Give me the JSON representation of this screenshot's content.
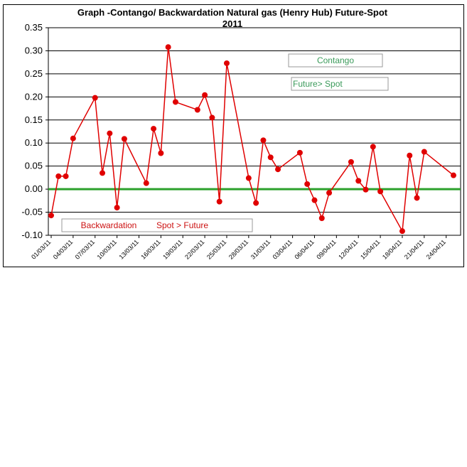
{
  "chart_data": {
    "type": "line",
    "title": "Graph -Contango/ Backwardation Natural gas (Henry Hub) Future-Spot",
    "subtitle": "2011",
    "xlabel": "",
    "ylabel": "",
    "ylim": [
      -0.1,
      0.35
    ],
    "y_ticks": [
      "0.35",
      "0.30",
      "0.25",
      "0.20",
      "0.15",
      "0.10",
      "0.05",
      "0.00",
      "-0.05",
      "-0.10"
    ],
    "x_tick_labels": [
      "01/03/11",
      "04/03/11",
      "07/03/11",
      "10/03/11",
      "13/03/11",
      "16/03/11",
      "19/03/11",
      "22/03/11",
      "25/03/11",
      "28/03/11",
      "31/03/11",
      "03/04/11",
      "06/04/11",
      "09/04/11",
      "12/04/11",
      "15/04/11",
      "18/04/11",
      "21/04/11",
      "24/04/11"
    ],
    "grid": true,
    "zero_line_color": "#2ca02c",
    "series_color": "#e00000",
    "series": [
      {
        "x": [
          "01/03/11",
          "02/03/11",
          "03/03/11",
          "04/03/11",
          "07/03/11",
          "08/03/11",
          "09/03/11",
          "10/03/11",
          "11/03/11",
          "14/03/11",
          "15/03/11",
          "16/03/11",
          "17/03/11",
          "18/03/11",
          "21/03/11",
          "22/03/11",
          "23/03/11",
          "24/03/11",
          "25/03/11",
          "28/03/11",
          "29/03/11",
          "30/03/11",
          "31/03/11",
          "01/04/11",
          "04/04/11",
          "05/04/11",
          "06/04/11",
          "07/04/11",
          "08/04/11",
          "11/04/11",
          "12/04/11",
          "13/04/11",
          "14/04/11",
          "15/04/11",
          "18/04/11",
          "19/04/11",
          "20/04/11",
          "21/04/11",
          "25/04/11"
        ],
        "values": [
          -0.057,
          0.028,
          0.028,
          0.11,
          0.198,
          0.035,
          0.121,
          -0.04,
          0.109,
          0.013,
          0.131,
          0.078,
          0.308,
          0.189,
          0.172,
          0.204,
          0.155,
          -0.027,
          0.273,
          0.024,
          -0.03,
          0.106,
          0.069,
          0.043,
          0.079,
          0.011,
          -0.024,
          -0.063,
          -0.008,
          0.059,
          0.018,
          -0.001,
          0.092,
          -0.005,
          -0.091,
          0.073,
          -0.019,
          0.081,
          0.03
        ]
      }
    ],
    "annotations": [
      {
        "text": "Contango",
        "color": "#3a9a5a"
      },
      {
        "text": "Future> Spot",
        "color": "#3a9a5a"
      },
      {
        "text": "Backwardation",
        "color": "#cc1111"
      },
      {
        "text": "Spot > Future",
        "color": "#cc1111"
      }
    ]
  }
}
